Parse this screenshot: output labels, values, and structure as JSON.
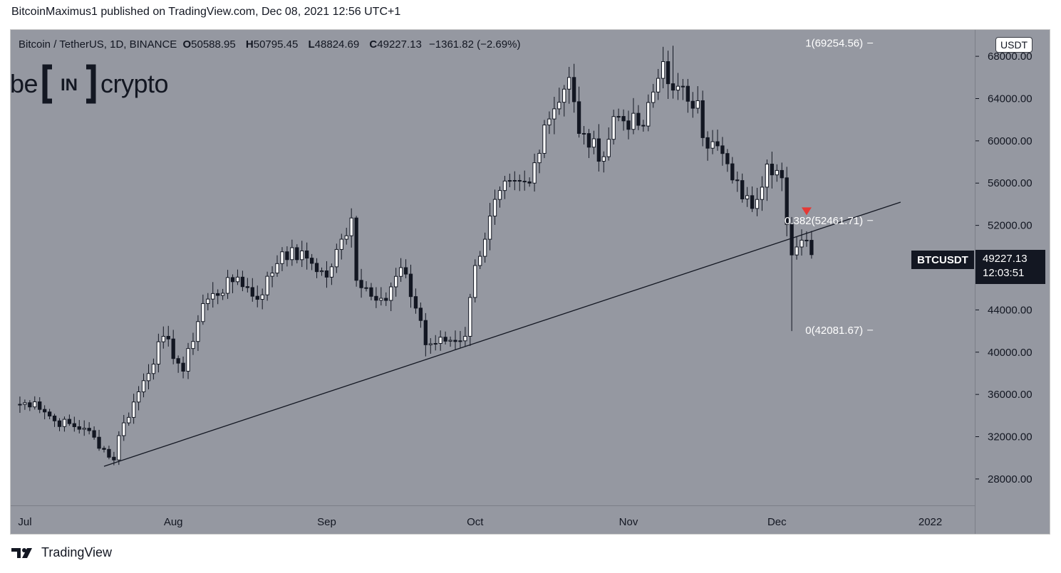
{
  "header": {
    "publisher_line": "BitcoinMaximus1 published on TradingView.com, Dec 08, 2021 12:56 UTC+1"
  },
  "legend": {
    "symbol": "Bitcoin / TetherUS, 1D, BINANCE",
    "open_key": "O",
    "open": "50588.95",
    "high_key": "H",
    "high": "50795.45",
    "low_key": "L",
    "low": "48824.69",
    "close_key": "C",
    "close": "49227.13",
    "change": "−1361.82 (−2.69%)"
  },
  "logo": {
    "left_text": "be",
    "box_text": "IN",
    "right_text": "crypto"
  },
  "price_axis": {
    "currency_badge": "USDT"
  },
  "price_tag": {
    "symbol": "BTCUSDT",
    "price": "49227.13",
    "countdown": "12:03:51"
  },
  "footer": {
    "brand": "TradingView"
  },
  "colors": {
    "plot_bg": "#9598a1",
    "bull": "#ffffff",
    "bear": "#131722",
    "marker": "#e53935"
  },
  "chart_data": {
    "type": "candlestick",
    "title": "Bitcoin / TetherUS, 1D, BINANCE",
    "ylim": [
      25500,
      70500
    ],
    "yticks": [
      {
        "value": 28000,
        "label": "28000.00"
      },
      {
        "value": 32000,
        "label": "32000.00"
      },
      {
        "value": 36000,
        "label": "36000.00"
      },
      {
        "value": 40000,
        "label": "40000.00"
      },
      {
        "value": 44000,
        "label": "44000.00"
      },
      {
        "value": 48000,
        "label": "48000.00"
      },
      {
        "value": 52000,
        "label": "52000.00"
      },
      {
        "value": 56000,
        "label": "56000.00"
      },
      {
        "value": 60000,
        "label": "60000.00"
      },
      {
        "value": 64000,
        "label": "64000.00"
      },
      {
        "value": 68000,
        "label": "68000.00"
      }
    ],
    "x_start": "2021-06-30",
    "x_days": 195,
    "xticks": [
      {
        "date": "2021-07-01",
        "label": "Jul"
      },
      {
        "date": "2021-08-01",
        "label": "Aug"
      },
      {
        "date": "2021-09-01",
        "label": "Sep"
      },
      {
        "date": "2021-10-01",
        "label": "Oct"
      },
      {
        "date": "2021-11-01",
        "label": "Nov"
      },
      {
        "date": "2021-12-01",
        "label": "Dec"
      },
      {
        "date": "2022-01-01",
        "label": "2022"
      }
    ],
    "anchors": [
      [
        "2021-06-30",
        35000
      ],
      [
        "2021-07-04",
        35300
      ],
      [
        "2021-07-08",
        33500
      ],
      [
        "2021-07-14",
        32800
      ],
      [
        "2021-07-20",
        29800
      ],
      [
        "2021-07-21",
        32100
      ],
      [
        "2021-07-26",
        37300
      ],
      [
        "2021-07-30",
        41500
      ],
      [
        "2021-08-03",
        38200
      ],
      [
        "2021-08-07",
        44600
      ],
      [
        "2021-08-14",
        47100
      ],
      [
        "2021-08-18",
        45000
      ],
      [
        "2021-08-23",
        49500
      ],
      [
        "2021-08-28",
        48900
      ],
      [
        "2021-09-01",
        47100
      ],
      [
        "2021-09-06",
        52700
      ],
      [
        "2021-09-07",
        46800
      ],
      [
        "2021-09-13",
        44900
      ],
      [
        "2021-09-16",
        48000
      ],
      [
        "2021-09-20",
        43000
      ],
      [
        "2021-09-21",
        40700
      ],
      [
        "2021-09-29",
        41500
      ],
      [
        "2021-10-01",
        48200
      ],
      [
        "2021-10-06",
        55300
      ],
      [
        "2021-10-12",
        56000
      ],
      [
        "2021-10-15",
        61500
      ],
      [
        "2021-10-20",
        66000
      ],
      [
        "2021-10-22",
        60700
      ],
      [
        "2021-10-27",
        58500
      ],
      [
        "2021-10-29",
        62300
      ],
      [
        "2021-11-04",
        61400
      ],
      [
        "2021-11-08",
        67500
      ],
      [
        "2021-11-10",
        64800
      ],
      [
        "2021-11-15",
        63800
      ],
      [
        "2021-11-16",
        60300
      ],
      [
        "2021-11-20",
        58800
      ],
      [
        "2021-11-22",
        56300
      ],
      [
        "2021-11-26",
        53600
      ],
      [
        "2021-11-29",
        57800
      ],
      [
        "2021-12-01",
        57200
      ],
      [
        "2021-12-02",
        56500
      ],
      [
        "2021-12-04",
        49200
      ],
      [
        "2021-12-06",
        50600
      ],
      [
        "2021-12-07",
        50588.95
      ],
      [
        "2021-12-08",
        49227.13
      ]
    ],
    "low_extremes": [
      [
        "2021-12-04",
        42000
      ],
      [
        "2021-07-20",
        29300
      ],
      [
        "2021-09-21",
        39600
      ]
    ],
    "high_extremes": [
      [
        "2021-11-10",
        69000
      ],
      [
        "2021-09-07",
        52900
      ],
      [
        "2021-10-20",
        67000
      ]
    ],
    "trendline": {
      "from": [
        "2021-07-18",
        29200
      ],
      "to": [
        "2021-12-26",
        54200
      ]
    },
    "fib_levels": [
      {
        "label": "1(69254.56)",
        "value": 69254.56
      },
      {
        "label": "0.382(52461.71)",
        "value": 52461.71
      },
      {
        "label": "0(42081.67)",
        "value": 42081.67
      }
    ],
    "fib_label_date": "2021-12-04",
    "marker": {
      "date": "2021-12-07",
      "value": 53300,
      "shape": "down-triangle"
    }
  }
}
